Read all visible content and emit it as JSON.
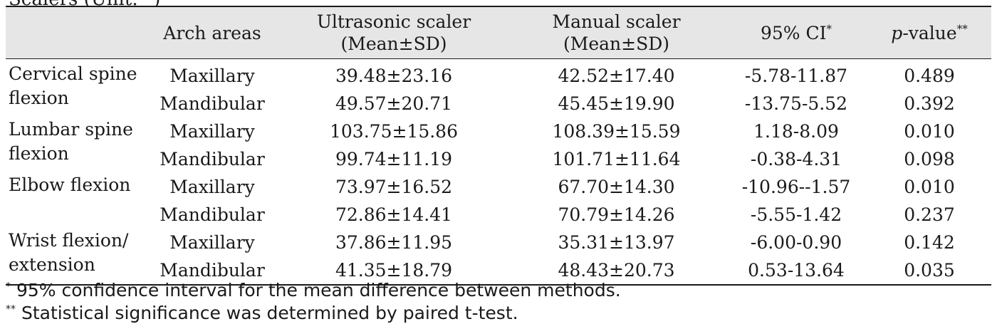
{
  "caption_fragment": "Scalers (Unit: °)",
  "table": {
    "headers": {
      "measure": "",
      "arch": "Arch areas",
      "ultrasonic_line1": "Ultrasonic scaler",
      "ultrasonic_line2": "(Mean±SD)",
      "manual_line1": "Manual scaler",
      "manual_line2": "(Mean±SD)",
      "ci": "95% CI",
      "ci_mark": "*",
      "p_italic": "p",
      "p_rest": "-value",
      "p_mark": "**"
    },
    "groups": [
      {
        "measure": "Cervical spine flexion",
        "rows": [
          {
            "arch": "Maxillary",
            "ultrasonic": "39.48±23.16",
            "manual": "42.52±17.40",
            "ci": "-5.78-11.87",
            "p": "0.489"
          },
          {
            "arch": "Mandibular",
            "ultrasonic": "49.57±20.71",
            "manual": "45.45±19.90",
            "ci": "-13.75-5.52",
            "p": "0.392"
          }
        ]
      },
      {
        "measure": "Lumbar spine flexion",
        "rows": [
          {
            "arch": "Maxillary",
            "ultrasonic": "103.75±15.86",
            "manual": "108.39±15.59",
            "ci": "1.18-8.09",
            "p": "0.010"
          },
          {
            "arch": "Mandibular",
            "ultrasonic": "99.74±11.19",
            "manual": "101.71±11.64",
            "ci": "-0.38-4.31",
            "p": "0.098"
          }
        ]
      },
      {
        "measure": "Elbow flexion",
        "rows": [
          {
            "arch": "Maxillary",
            "ultrasonic": "73.97±16.52",
            "manual": "67.70±14.30",
            "ci": "-10.96--1.57",
            "p": "0.010"
          },
          {
            "arch": "Mandibular",
            "ultrasonic": "72.86±14.41",
            "manual": "70.79±14.26",
            "ci": "-5.55-1.42",
            "p": "0.237"
          }
        ]
      },
      {
        "measure": "Wrist flexion/ extension",
        "rows": [
          {
            "arch": "Maxillary",
            "ultrasonic": "37.86±11.95",
            "manual": "35.31±13.97",
            "ci": "-6.00-0.90",
            "p": "0.142"
          },
          {
            "arch": "Mandibular",
            "ultrasonic": "41.35±18.79",
            "manual": "48.43±20.73",
            "ci": "0.53-13.64",
            "p": "0.035"
          }
        ]
      }
    ]
  },
  "footnotes": [
    {
      "mark": "*",
      "text": " 95% confidence interval for the mean difference between methods."
    },
    {
      "mark": "**",
      "text": " Statistical significance was determined by paired t-test."
    }
  ]
}
